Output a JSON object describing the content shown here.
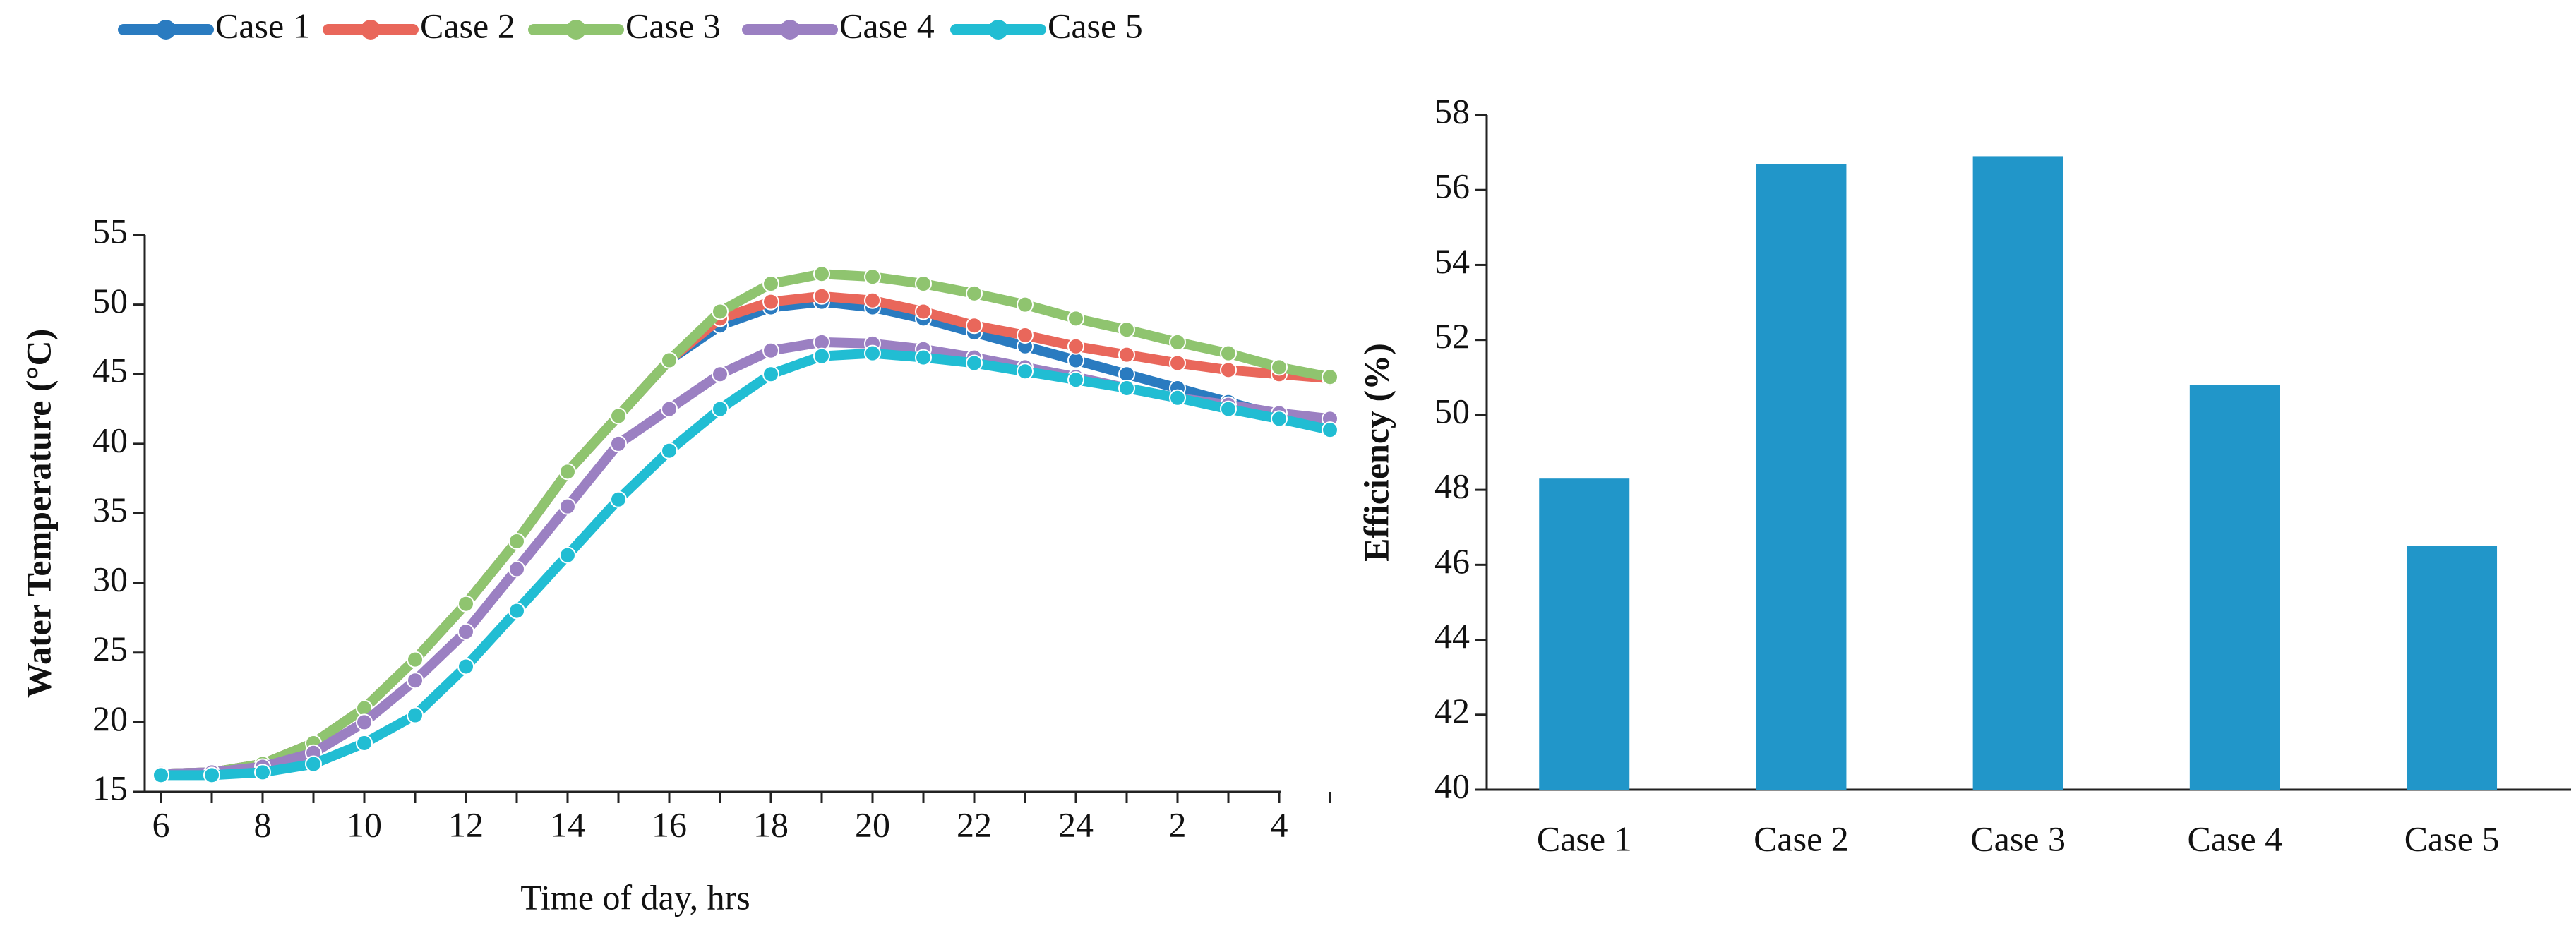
{
  "chart_data": [
    {
      "type": "line",
      "x_label": "Time of day, hrs",
      "y_label": "Water Temperature (°C)",
      "categories": [
        "6",
        null,
        "8",
        null,
        "10",
        null,
        "12",
        null,
        "14",
        null,
        "16",
        null,
        "18",
        null,
        "20",
        null,
        "22",
        null,
        "24",
        null,
        "2",
        null,
        "4",
        null
      ],
      "ylim": [
        15,
        55
      ],
      "yticks": [
        15,
        20,
        25,
        30,
        35,
        40,
        45,
        50,
        55
      ],
      "legend": "top",
      "series": [
        {
          "name": "Case 1",
          "color": "#2a7bc0",
          "values": [
            16.3,
            16.4,
            17,
            18.5,
            21,
            24.5,
            28.5,
            33,
            38,
            42,
            46,
            48.5,
            49.8,
            50.2,
            49.8,
            49,
            48,
            47,
            46,
            45,
            44,
            43,
            42,
            41
          ]
        },
        {
          "name": "Case 2",
          "color": "#e9675b",
          "values": [
            16.3,
            16.4,
            17,
            18.5,
            21,
            24.5,
            28.5,
            33,
            38,
            42,
            46,
            49,
            50.2,
            50.6,
            50.3,
            49.5,
            48.5,
            47.8,
            47,
            46.4,
            45.8,
            45.3,
            45,
            44.7
          ]
        },
        {
          "name": "Case 3",
          "color": "#8fc46f",
          "values": [
            16.3,
            16.4,
            17,
            18.5,
            21,
            24.5,
            28.5,
            33,
            38,
            42,
            46,
            49.5,
            51.5,
            52.2,
            52,
            51.5,
            50.8,
            50,
            49,
            48.2,
            47.3,
            46.5,
            45.5,
            44.8
          ]
        },
        {
          "name": "Case 4",
          "color": "#9b80c2",
          "values": [
            16.3,
            16.4,
            16.8,
            17.8,
            20,
            23,
            26.5,
            31,
            35.5,
            40,
            42.5,
            45,
            46.7,
            47.3,
            47.2,
            46.8,
            46.2,
            45.5,
            44.8,
            44,
            43.3,
            42.8,
            42.2,
            41.8
          ]
        },
        {
          "name": "Case 5",
          "color": "#21bdd3",
          "values": [
            16.2,
            16.2,
            16.4,
            17,
            18.5,
            20.5,
            24,
            28,
            32,
            36,
            39.5,
            42.5,
            45,
            46.3,
            46.5,
            46.2,
            45.8,
            45.2,
            44.6,
            44,
            43.3,
            42.5,
            41.8,
            41
          ]
        }
      ]
    },
    {
      "type": "bar",
      "y_label": "Efficiency (%)",
      "categories": [
        "Case 1",
        "Case 2",
        "Case 3",
        "Case 4",
        "Case 5"
      ],
      "values": [
        48.3,
        56.7,
        56.9,
        50.8,
        46.5
      ],
      "color": "#2196c9",
      "ylim": [
        40,
        58
      ],
      "yticks": [
        40,
        42,
        44,
        46,
        48,
        50,
        52,
        54,
        56,
        58
      ]
    }
  ]
}
